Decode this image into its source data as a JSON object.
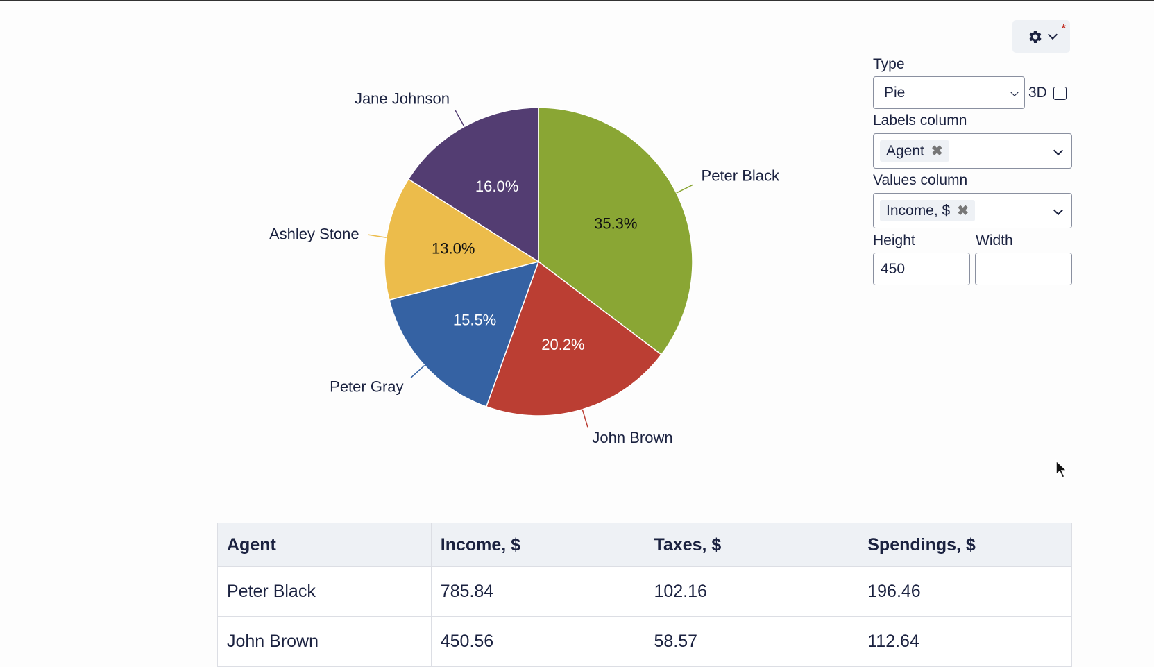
{
  "chart_data": {
    "type": "pie",
    "labels": [
      "Peter Black",
      "John Brown",
      "Peter Gray",
      "Ashley Stone",
      "Jane Johnson"
    ],
    "values": [
      35.3,
      20.2,
      15.5,
      13.0,
      16.0
    ],
    "value_labels": [
      "35.3%",
      "20.2%",
      "15.5%",
      "13.0%",
      "16.0%"
    ],
    "colors": [
      "#8aa634",
      "#bb3e33",
      "#3562a3",
      "#ecbc4b",
      "#533d72"
    ],
    "label_text_colors": [
      "#111111",
      "#ffffff",
      "#ffffff",
      "#111111",
      "#ffffff"
    ],
    "line_colors": [
      "#8aa634",
      "#bb3e33",
      "#3562a3",
      "#ecbc4b",
      "#533d72"
    ],
    "start": "top",
    "direction": "clockwise"
  },
  "settings": {
    "type_label": "Type",
    "type_value": "Pie",
    "three_d_label": "3D",
    "three_d_checked": false,
    "labels_column_label": "Labels column",
    "labels_column_tag": "Agent",
    "values_column_label": "Values column",
    "values_column_tag": "Income, $",
    "height_label": "Height",
    "height_value": "450",
    "width_label": "Width",
    "width_value": "",
    "modified_marker": "*"
  },
  "table": {
    "headers": [
      "Agent",
      "Income, $",
      "Taxes, $",
      "Spendings, $"
    ],
    "rows": [
      [
        "Peter Black",
        "785.84",
        "102.16",
        "196.46"
      ],
      [
        "John Brown",
        "450.56",
        "58.57",
        "112.64"
      ]
    ]
  }
}
